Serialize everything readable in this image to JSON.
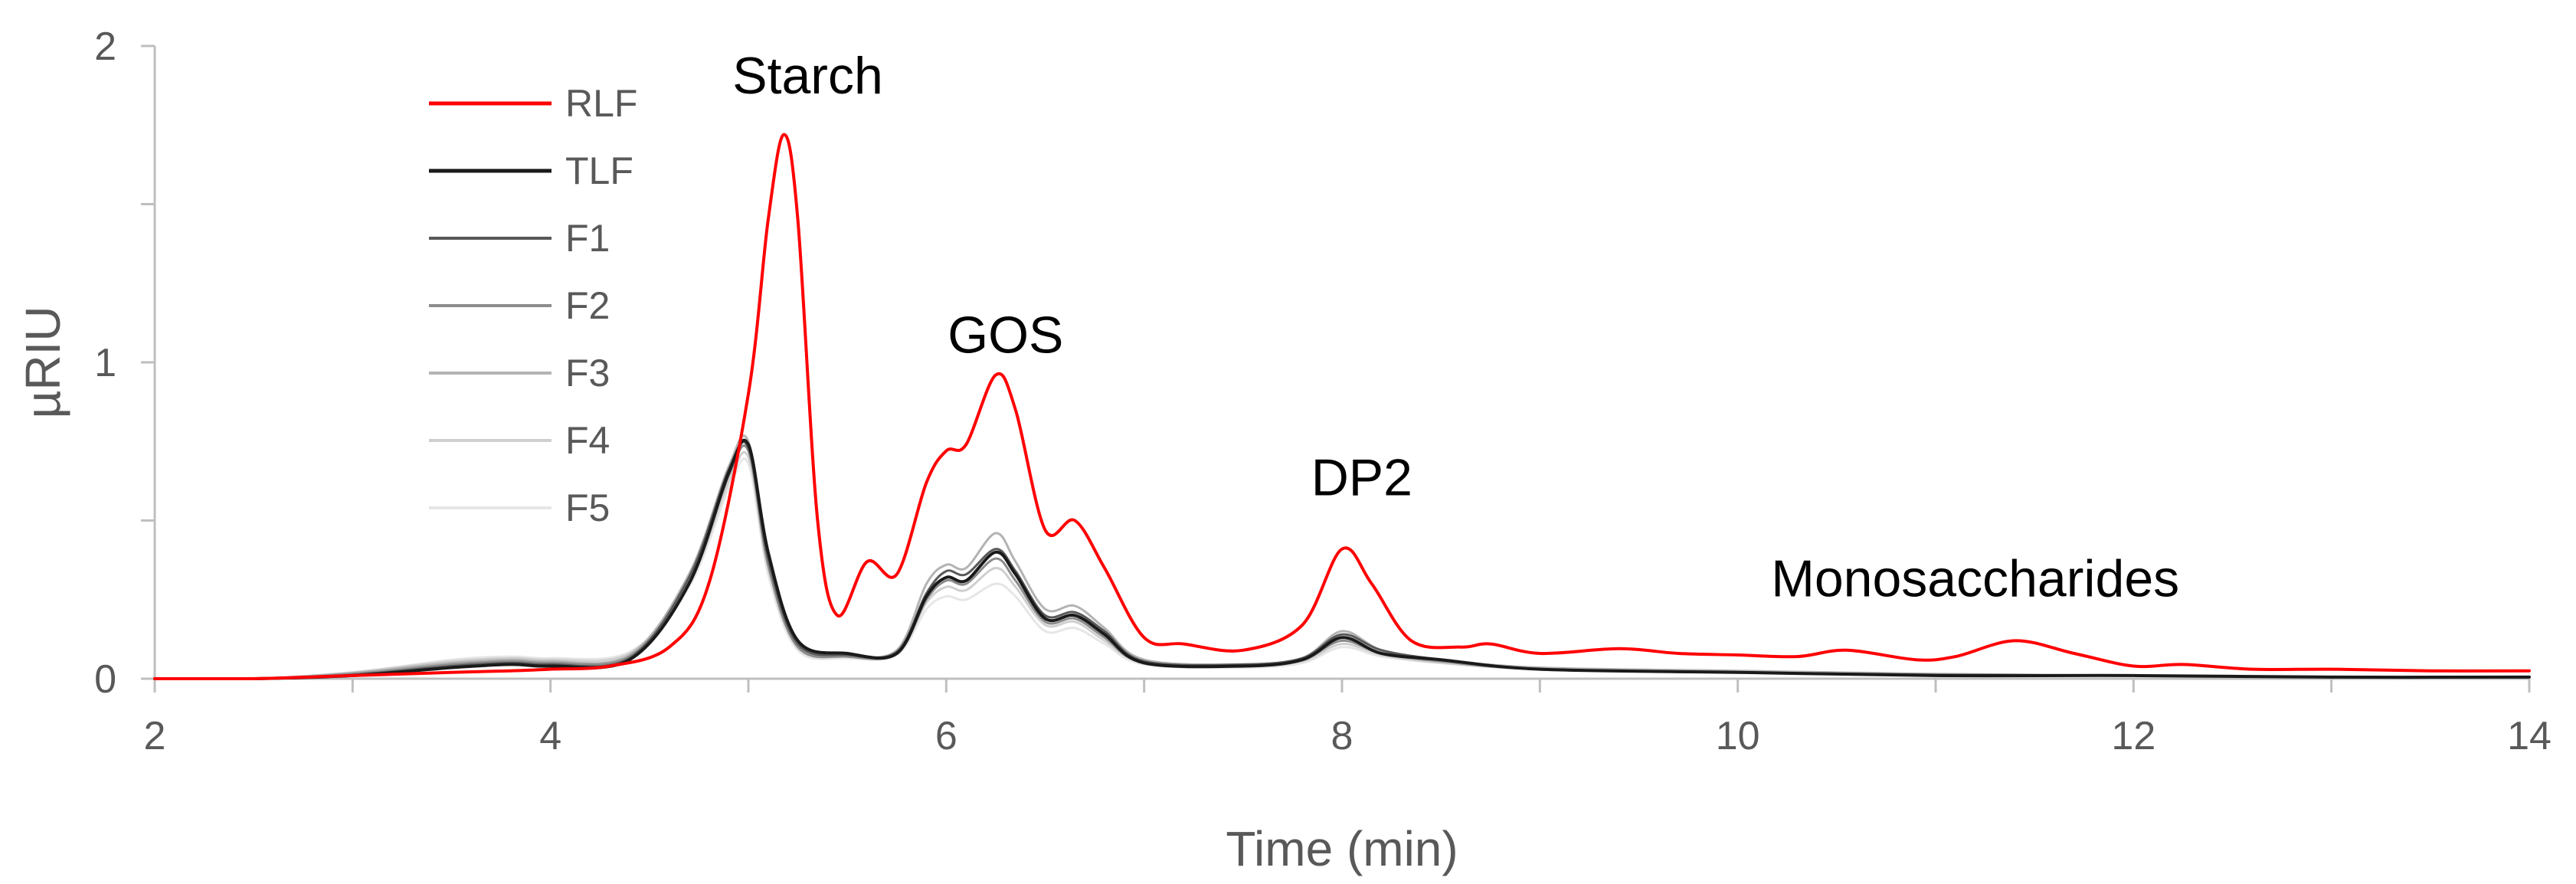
{
  "chart_data": {
    "type": "line",
    "xlabel": "Time (min)",
    "ylabel": "µRIU",
    "xlim": [
      2,
      14
    ],
    "ylim": [
      0,
      2
    ],
    "xticks": [
      "2",
      "4",
      "6",
      "8",
      "10",
      "12",
      "14"
    ],
    "yticks": [
      "0",
      "1",
      "2"
    ],
    "grid": false,
    "legend_position": "top-left",
    "annotations": [
      {
        "text": "Starch",
        "x": 5.3,
        "y": 1.85
      },
      {
        "text": "GOS",
        "x": 6.3,
        "y": 1.03
      },
      {
        "text": "DP2",
        "x": 8.1,
        "y": 0.58
      },
      {
        "text": "Monosaccharides",
        "x": 11.2,
        "y": 0.26
      }
    ],
    "series": [
      {
        "name": "RLF",
        "color": "#ff0000",
        "width": 4,
        "x": [
          2,
          2.5,
          3,
          3.5,
          3.8,
          4,
          4.3,
          4.6,
          4.8,
          5.0,
          5.1,
          5.18,
          5.25,
          5.35,
          5.45,
          5.6,
          5.75,
          5.9,
          6.0,
          6.1,
          6.25,
          6.35,
          6.5,
          6.65,
          6.8,
          7.0,
          7.2,
          7.5,
          7.8,
          8.0,
          8.15,
          8.35,
          8.6,
          8.75,
          9.0,
          9.4,
          9.7,
          10.0,
          10.3,
          10.55,
          10.9,
          11.1,
          11.4,
          11.7,
          12.0,
          12.25,
          12.6,
          13.0,
          13.5,
          14.0
        ],
        "y": [
          0.0,
          0.0,
          0.01,
          0.02,
          0.025,
          0.03,
          0.04,
          0.1,
          0.3,
          0.9,
          1.45,
          1.72,
          1.45,
          0.5,
          0.2,
          0.37,
          0.33,
          0.62,
          0.72,
          0.74,
          0.96,
          0.85,
          0.47,
          0.5,
          0.35,
          0.13,
          0.11,
          0.09,
          0.17,
          0.41,
          0.3,
          0.12,
          0.1,
          0.11,
          0.08,
          0.095,
          0.08,
          0.075,
          0.07,
          0.09,
          0.06,
          0.07,
          0.12,
          0.08,
          0.04,
          0.045,
          0.03,
          0.03,
          0.025,
          0.025
        ]
      },
      {
        "name": "TLF",
        "color": "#1a1a1a",
        "width": 4,
        "x": [
          2,
          2.5,
          3,
          3.5,
          3.8,
          4,
          4.4,
          4.7,
          4.9,
          5.0,
          5.1,
          5.25,
          5.5,
          5.75,
          5.9,
          6.0,
          6.1,
          6.25,
          6.35,
          6.5,
          6.65,
          6.8,
          7.0,
          7.5,
          7.8,
          8.0,
          8.2,
          8.5,
          9.0,
          10.0,
          11.0,
          12.0,
          13.0,
          14.0
        ],
        "y": [
          0.0,
          0.0,
          0.01,
          0.035,
          0.045,
          0.04,
          0.06,
          0.3,
          0.65,
          0.74,
          0.4,
          0.12,
          0.08,
          0.08,
          0.26,
          0.32,
          0.31,
          0.4,
          0.33,
          0.19,
          0.2,
          0.14,
          0.05,
          0.04,
          0.06,
          0.13,
          0.08,
          0.06,
          0.03,
          0.02,
          0.01,
          0.01,
          0.005,
          0.005
        ]
      },
      {
        "name": "F1",
        "color": "#595959",
        "width": 3,
        "x": [
          2,
          2.5,
          3,
          3.5,
          3.8,
          4,
          4.4,
          4.7,
          4.9,
          5.0,
          5.1,
          5.25,
          5.5,
          5.75,
          5.9,
          6.0,
          6.1,
          6.25,
          6.35,
          6.5,
          6.65,
          6.8,
          7.0,
          7.5,
          7.8,
          8.0,
          8.2,
          8.5,
          9.0,
          10.0,
          11.0,
          12.0,
          13.0,
          14.0
        ],
        "y": [
          0.0,
          0.0,
          0.012,
          0.04,
          0.05,
          0.045,
          0.065,
          0.32,
          0.66,
          0.73,
          0.38,
          0.11,
          0.075,
          0.085,
          0.27,
          0.34,
          0.33,
          0.41,
          0.34,
          0.2,
          0.21,
          0.15,
          0.055,
          0.045,
          0.065,
          0.14,
          0.09,
          0.06,
          0.03,
          0.02,
          0.012,
          0.01,
          0.005,
          0.005
        ]
      },
      {
        "name": "F2",
        "color": "#8c8c8c",
        "width": 3,
        "x": [
          2,
          2.5,
          3,
          3.5,
          3.8,
          4,
          4.4,
          4.7,
          4.9,
          5.0,
          5.1,
          5.25,
          5.5,
          5.75,
          5.9,
          6.0,
          6.1,
          6.25,
          6.35,
          6.5,
          6.65,
          6.8,
          7.0,
          7.5,
          7.8,
          8.0,
          8.2,
          8.5,
          9.0,
          10.0,
          11.0,
          12.0,
          13.0,
          14.0
        ],
        "y": [
          0.0,
          0.0,
          0.015,
          0.045,
          0.055,
          0.05,
          0.07,
          0.31,
          0.64,
          0.72,
          0.36,
          0.1,
          0.07,
          0.08,
          0.25,
          0.31,
          0.3,
          0.38,
          0.31,
          0.18,
          0.19,
          0.13,
          0.05,
          0.04,
          0.06,
          0.12,
          0.08,
          0.055,
          0.03,
          0.02,
          0.012,
          0.01,
          0.005,
          0.005
        ]
      },
      {
        "name": "F3",
        "color": "#b3b3b3",
        "width": 3,
        "x": [
          2,
          2.5,
          3,
          3.5,
          3.8,
          4,
          4.4,
          4.7,
          4.9,
          5.0,
          5.1,
          5.25,
          5.5,
          5.75,
          5.9,
          6.0,
          6.1,
          6.25,
          6.35,
          6.5,
          6.65,
          6.8,
          7.0,
          7.5,
          7.8,
          8.0,
          8.2,
          8.5,
          9.0,
          10.0,
          11.0,
          12.0,
          13.0,
          14.0
        ],
        "y": [
          0.0,
          0.0,
          0.018,
          0.05,
          0.06,
          0.055,
          0.075,
          0.33,
          0.67,
          0.75,
          0.37,
          0.1,
          0.075,
          0.09,
          0.3,
          0.36,
          0.35,
          0.46,
          0.37,
          0.22,
          0.23,
          0.16,
          0.06,
          0.045,
          0.065,
          0.15,
          0.09,
          0.06,
          0.035,
          0.025,
          0.015,
          0.01,
          0.006,
          0.005
        ]
      },
      {
        "name": "F4",
        "color": "#cfcfcf",
        "width": 3,
        "x": [
          2,
          2.5,
          3,
          3.5,
          3.8,
          4,
          4.4,
          4.7,
          4.9,
          5.0,
          5.1,
          5.25,
          5.5,
          5.75,
          5.9,
          6.0,
          6.1,
          6.25,
          6.35,
          6.5,
          6.65,
          6.8,
          7.0,
          7.5,
          7.8,
          8.0,
          8.2,
          8.5,
          9.0,
          10.0,
          11.0,
          12.0,
          13.0,
          14.0
        ],
        "y": [
          0.0,
          0.0,
          0.02,
          0.055,
          0.065,
          0.06,
          0.08,
          0.3,
          0.62,
          0.7,
          0.35,
          0.1,
          0.07,
          0.08,
          0.24,
          0.29,
          0.28,
          0.35,
          0.29,
          0.17,
          0.18,
          0.12,
          0.05,
          0.04,
          0.055,
          0.11,
          0.075,
          0.05,
          0.03,
          0.02,
          0.012,
          0.01,
          0.005,
          0.005
        ]
      },
      {
        "name": "F5",
        "color": "#e6e6e6",
        "width": 3,
        "x": [
          2,
          2.5,
          3,
          3.5,
          3.8,
          4,
          4.4,
          4.7,
          4.9,
          5.0,
          5.1,
          5.25,
          5.5,
          5.75,
          5.9,
          6.0,
          6.1,
          6.25,
          6.35,
          6.5,
          6.65,
          6.8,
          7.0,
          7.5,
          7.8,
          8.0,
          8.2,
          8.5,
          9.0,
          10.0,
          11.0,
          12.0,
          13.0,
          14.0
        ],
        "y": [
          0.0,
          0.0,
          0.02,
          0.06,
          0.07,
          0.065,
          0.085,
          0.29,
          0.6,
          0.68,
          0.33,
          0.09,
          0.065,
          0.075,
          0.22,
          0.26,
          0.25,
          0.3,
          0.26,
          0.15,
          0.16,
          0.11,
          0.045,
          0.035,
          0.05,
          0.1,
          0.07,
          0.05,
          0.03,
          0.02,
          0.012,
          0.01,
          0.005,
          0.005
        ]
      }
    ]
  }
}
